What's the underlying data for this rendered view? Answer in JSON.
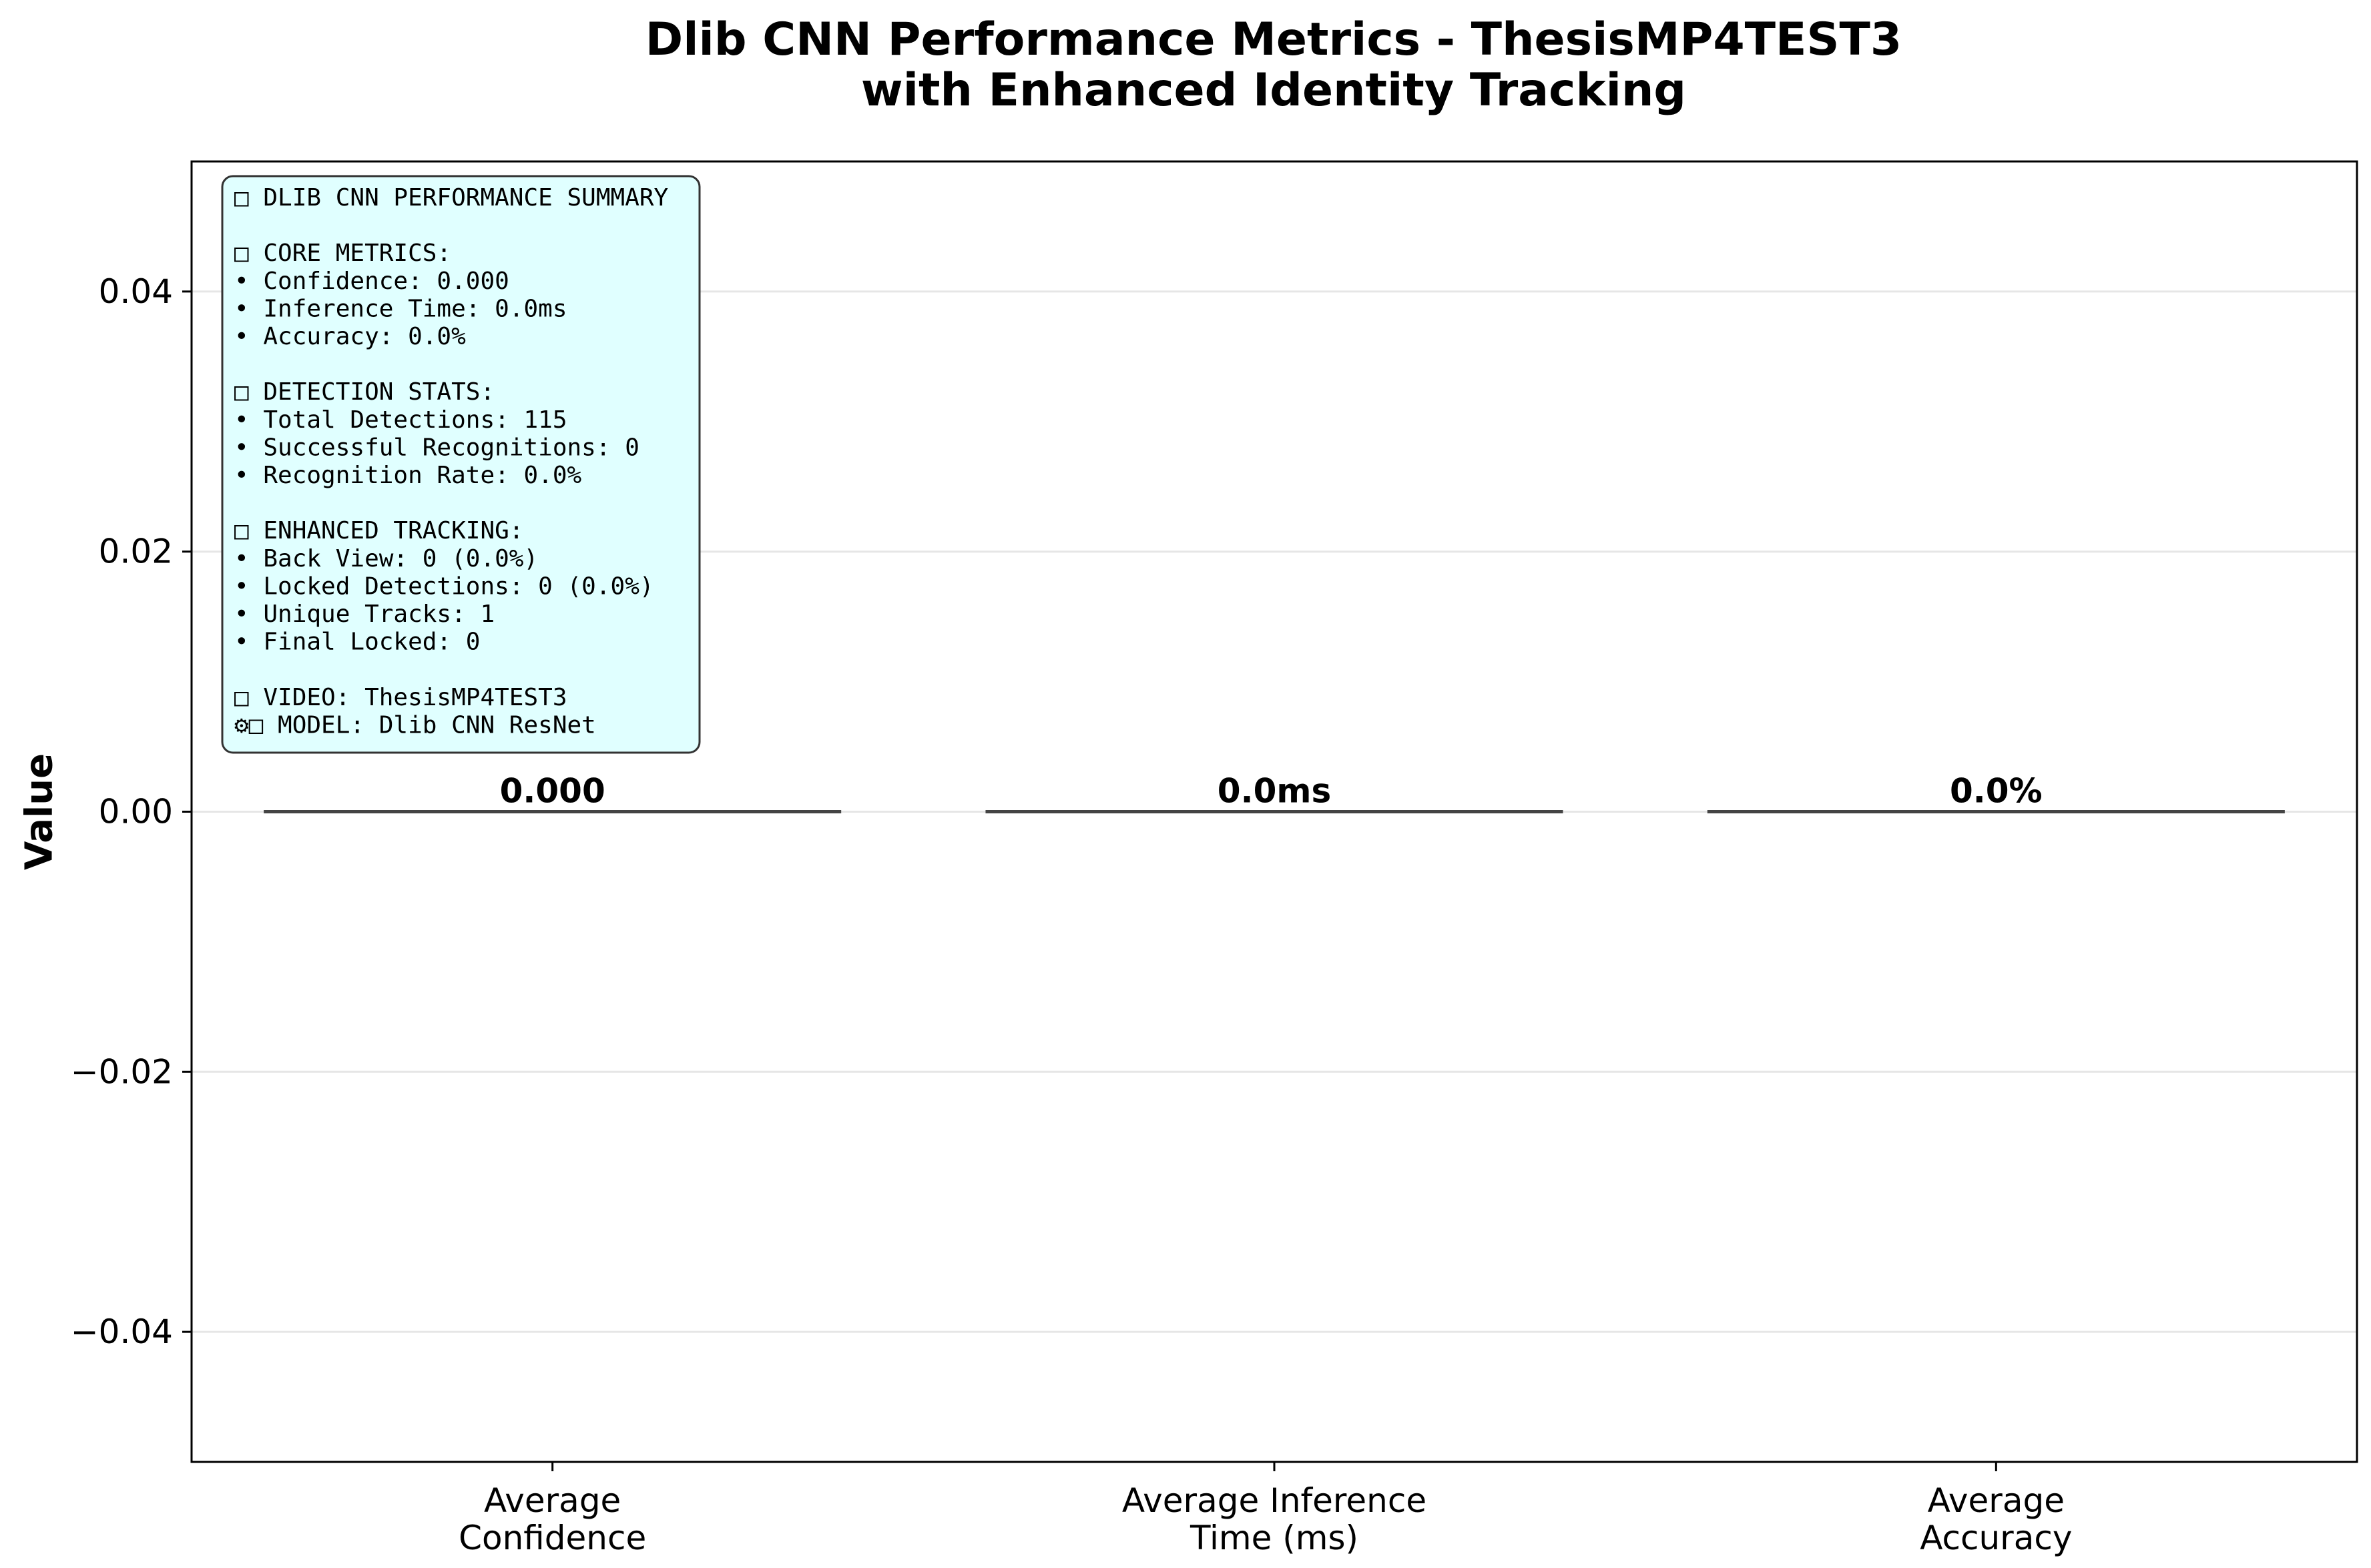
{
  "chart_data": {
    "type": "bar",
    "title": [
      "Dlib CNN Performance Metrics - ThesisMP4TEST3",
      "with Enhanced Identity Tracking"
    ],
    "xlabel": "",
    "ylabel": "Value",
    "categories": [
      [
        "Average",
        "Confidence"
      ],
      [
        "Average Inference",
        "Time (ms)"
      ],
      [
        "Average",
        "Accuracy"
      ]
    ],
    "values": [
      0.0,
      0.0,
      0.0
    ],
    "value_labels": [
      "0.000",
      "0.0ms",
      "0.0%"
    ],
    "ylim": [
      -0.05,
      0.05
    ],
    "yticks": [
      -0.04,
      -0.02,
      0.0,
      0.02,
      0.04
    ],
    "ytick_labels": [
      "−0.04",
      "−0.02",
      "0.00",
      "0.02",
      "0.04"
    ],
    "grid": "horizontal",
    "legend": null,
    "colors": {
      "bar_edge": "#444444",
      "grid": "#e6e6e6",
      "annotation_bg": "#e0ffff",
      "annotation_border": "#333333"
    }
  },
  "summary_box": {
    "lines": [
      "□ DLIB CNN PERFORMANCE SUMMARY",
      "",
      "□ CORE METRICS:",
      "• Confidence: 0.000",
      "• Inference Time: 0.0ms",
      "• Accuracy: 0.0%",
      "",
      "□ DETECTION STATS:",
      "• Total Detections: 115",
      "• Successful Recognitions: 0",
      "• Recognition Rate: 0.0%",
      "",
      "□ ENHANCED TRACKING:",
      "• Back View: 0 (0.0%)",
      "• Locked Detections: 0 (0.0%)",
      "• Unique Tracks: 1",
      "• Final Locked: 0",
      "",
      "□ VIDEO: ThesisMP4TEST3",
      "⚙□  MODEL: Dlib CNN ResNet"
    ]
  }
}
